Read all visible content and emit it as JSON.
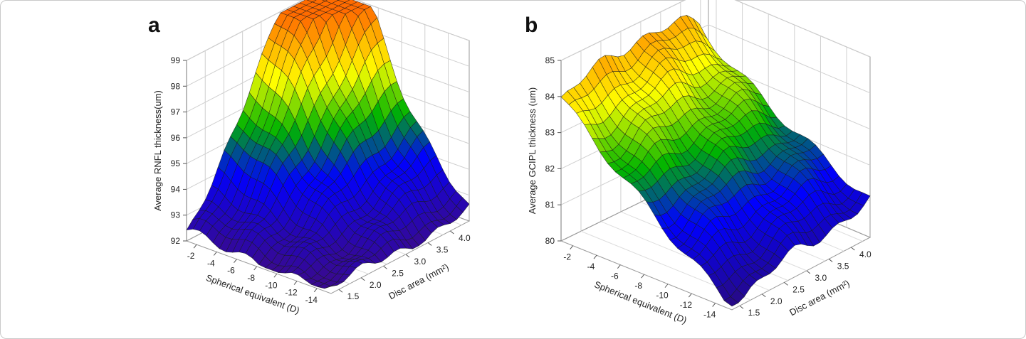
{
  "chart_data": [
    {
      "type": "surface3d",
      "panel_label": "a",
      "xlabel": "Spherical equivalent (D)",
      "ylabel": "Disc area (mm²)",
      "zlabel": "Average RNFL thickness(um)",
      "x_ticks": [
        "-2",
        "-4",
        "-6",
        "-8",
        "-10",
        "-12",
        "-14"
      ],
      "y_ticks": [
        "1.5",
        "2.0",
        "2.5",
        "3.0",
        "3.5",
        "4.0"
      ],
      "z_ticks": [
        "92",
        "93",
        "94",
        "95",
        "96",
        "97",
        "98",
        "99"
      ],
      "xlim": [
        -1,
        -14.5
      ],
      "ylim": [
        1.4,
        4.2
      ],
      "zlim": [
        92,
        99
      ],
      "colormap": [
        "#3a0a8c",
        "#0000ff",
        "#00b400",
        "#ffff00",
        "#ff6600"
      ],
      "z_peak": 99.0,
      "z_min": 92.1
    },
    {
      "type": "surface3d",
      "panel_label": "b",
      "xlabel": "Spherical equivalent (D)",
      "ylabel": "Disc area (mm²)",
      "zlabel": "Average GCIPL thickness (um)",
      "x_ticks": [
        "-2",
        "-4",
        "-6",
        "-8",
        "-10",
        "-12",
        "-14"
      ],
      "y_ticks": [
        "1.5",
        "2.0",
        "2.5",
        "3.0",
        "3.5",
        "4.0"
      ],
      "z_ticks": [
        "80",
        "81",
        "82",
        "83",
        "84",
        "85"
      ],
      "xlim": [
        -1,
        -14.5
      ],
      "ylim": [
        1.4,
        4.2
      ],
      "zlim": [
        80,
        85
      ],
      "colormap": [
        "#2a0a7c",
        "#0000ff",
        "#00b400",
        "#ffff00",
        "#ff6600"
      ],
      "z_peak": 84.8,
      "z_min": 80.2
    }
  ]
}
